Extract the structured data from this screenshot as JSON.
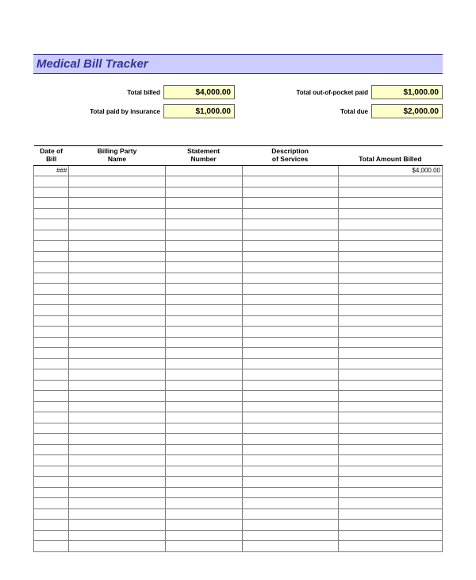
{
  "title": "Medical Bill Tracker",
  "colors": {
    "title_bg": "#ccccff",
    "title_border": "#333399",
    "title_text": "#333399",
    "value_bg": "#ffffcc",
    "value_border": "#666666",
    "grid_border": "#808080",
    "header_border": "#000000",
    "page_bg": "#ffffff"
  },
  "summary": {
    "left": [
      {
        "label": "Total billed",
        "value": "$4,000.00"
      },
      {
        "label": "Total paid by insurance",
        "value": "$1,000.00"
      }
    ],
    "right": [
      {
        "label": "Total out-of-pocket paid",
        "value": "$1,000.00"
      },
      {
        "label": "Total due",
        "value": "$2,000.00"
      }
    ]
  },
  "table": {
    "columns": [
      {
        "line1": "Date of",
        "line2": "Bill",
        "class": "col-date"
      },
      {
        "line1": "Billing Party",
        "line2": "Name",
        "class": "col-party"
      },
      {
        "line1": "Statement",
        "line2": "Number",
        "class": "col-stmt"
      },
      {
        "line1": "Description",
        "line2": "of Services",
        "class": "col-desc"
      },
      {
        "line1": "",
        "line2": "Total Amount Billed",
        "class": "col-amt"
      }
    ],
    "first_row": {
      "date": "###",
      "party": "",
      "stmt": "",
      "desc": "",
      "amount": "$4,000.00"
    },
    "blank_rows": 35
  }
}
